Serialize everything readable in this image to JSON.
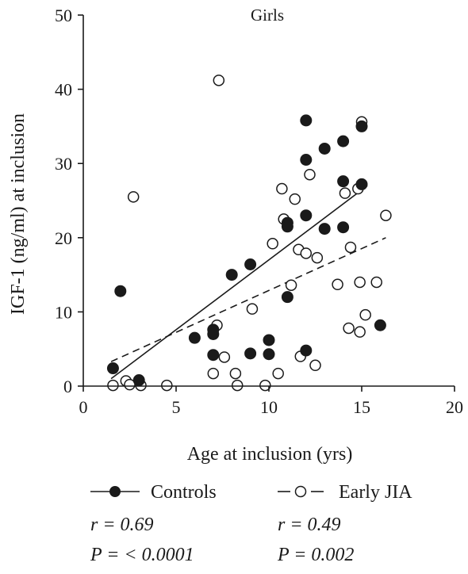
{
  "chart_data": {
    "type": "scatter",
    "title": "Girls",
    "xlabel": "Age at inclusion (yrs)",
    "ylabel": "IGF-1 (ng/ml) at inclusion",
    "xlim": [
      0,
      20
    ],
    "ylim": [
      0,
      50
    ],
    "xticks": [
      0,
      5,
      10,
      15,
      20
    ],
    "yticks": [
      0,
      10,
      20,
      30,
      40,
      50
    ],
    "grid": false,
    "legend_position": "bottom",
    "series": [
      {
        "name": "Controls",
        "marker": "filled-circle",
        "line_style": "solid",
        "r_text": "r = 0.69",
        "p_text": "P = < 0.0001",
        "fit": {
          "x": [
            1.5,
            15.3
          ],
          "y": [
            1.0,
            27.0
          ]
        },
        "points": [
          [
            1.6,
            2.4
          ],
          [
            2.0,
            12.8
          ],
          [
            3.0,
            0.8
          ],
          [
            6.0,
            6.5
          ],
          [
            7.0,
            7.0
          ],
          [
            7.0,
            7.6
          ],
          [
            7.0,
            4.2
          ],
          [
            8.0,
            15.0
          ],
          [
            9.0,
            16.4
          ],
          [
            9.0,
            4.4
          ],
          [
            10.0,
            6.2
          ],
          [
            10.0,
            4.3
          ],
          [
            11.0,
            22.0
          ],
          [
            11.0,
            21.5
          ],
          [
            11.0,
            12.0
          ],
          [
            12.0,
            35.8
          ],
          [
            12.0,
            30.5
          ],
          [
            12.0,
            23.0
          ],
          [
            12.0,
            4.8
          ],
          [
            13.0,
            32.0
          ],
          [
            13.0,
            21.2
          ],
          [
            14.0,
            33.0
          ],
          [
            14.0,
            27.6
          ],
          [
            14.0,
            21.4
          ],
          [
            15.0,
            35.0
          ],
          [
            15.0,
            27.2
          ],
          [
            16.0,
            8.2
          ]
        ]
      },
      {
        "name": "Early JIA",
        "marker": "open-circle",
        "line_style": "dashed",
        "r_text": "r = 0.49",
        "p_text": "P = 0.002",
        "fit": {
          "x": [
            1.5,
            16.3
          ],
          "y": [
            3.3,
            20.0
          ]
        },
        "points": [
          [
            1.6,
            0.1
          ],
          [
            2.3,
            0.7
          ],
          [
            2.5,
            0.2
          ],
          [
            2.7,
            25.5
          ],
          [
            3.1,
            0.1
          ],
          [
            4.5,
            0.1
          ],
          [
            7.0,
            1.7
          ],
          [
            7.2,
            8.2
          ],
          [
            7.3,
            41.2
          ],
          [
            7.6,
            3.9
          ],
          [
            8.2,
            1.7
          ],
          [
            8.3,
            0.1
          ],
          [
            9.1,
            10.4
          ],
          [
            9.8,
            0.1
          ],
          [
            10.2,
            19.2
          ],
          [
            10.5,
            1.7
          ],
          [
            10.7,
            26.6
          ],
          [
            10.8,
            22.5
          ],
          [
            11.2,
            13.6
          ],
          [
            11.4,
            25.2
          ],
          [
            11.6,
            18.4
          ],
          [
            11.7,
            4.0
          ],
          [
            12.0,
            17.9
          ],
          [
            12.2,
            28.5
          ],
          [
            12.5,
            2.8
          ],
          [
            12.6,
            17.3
          ],
          [
            13.7,
            13.7
          ],
          [
            14.1,
            26.0
          ],
          [
            14.3,
            7.8
          ],
          [
            14.4,
            18.7
          ],
          [
            14.8,
            26.6
          ],
          [
            14.9,
            14.0
          ],
          [
            14.9,
            7.3
          ],
          [
            15.0,
            35.6
          ],
          [
            15.2,
            9.6
          ],
          [
            15.8,
            14.0
          ],
          [
            16.3,
            23.0
          ]
        ]
      }
    ]
  }
}
